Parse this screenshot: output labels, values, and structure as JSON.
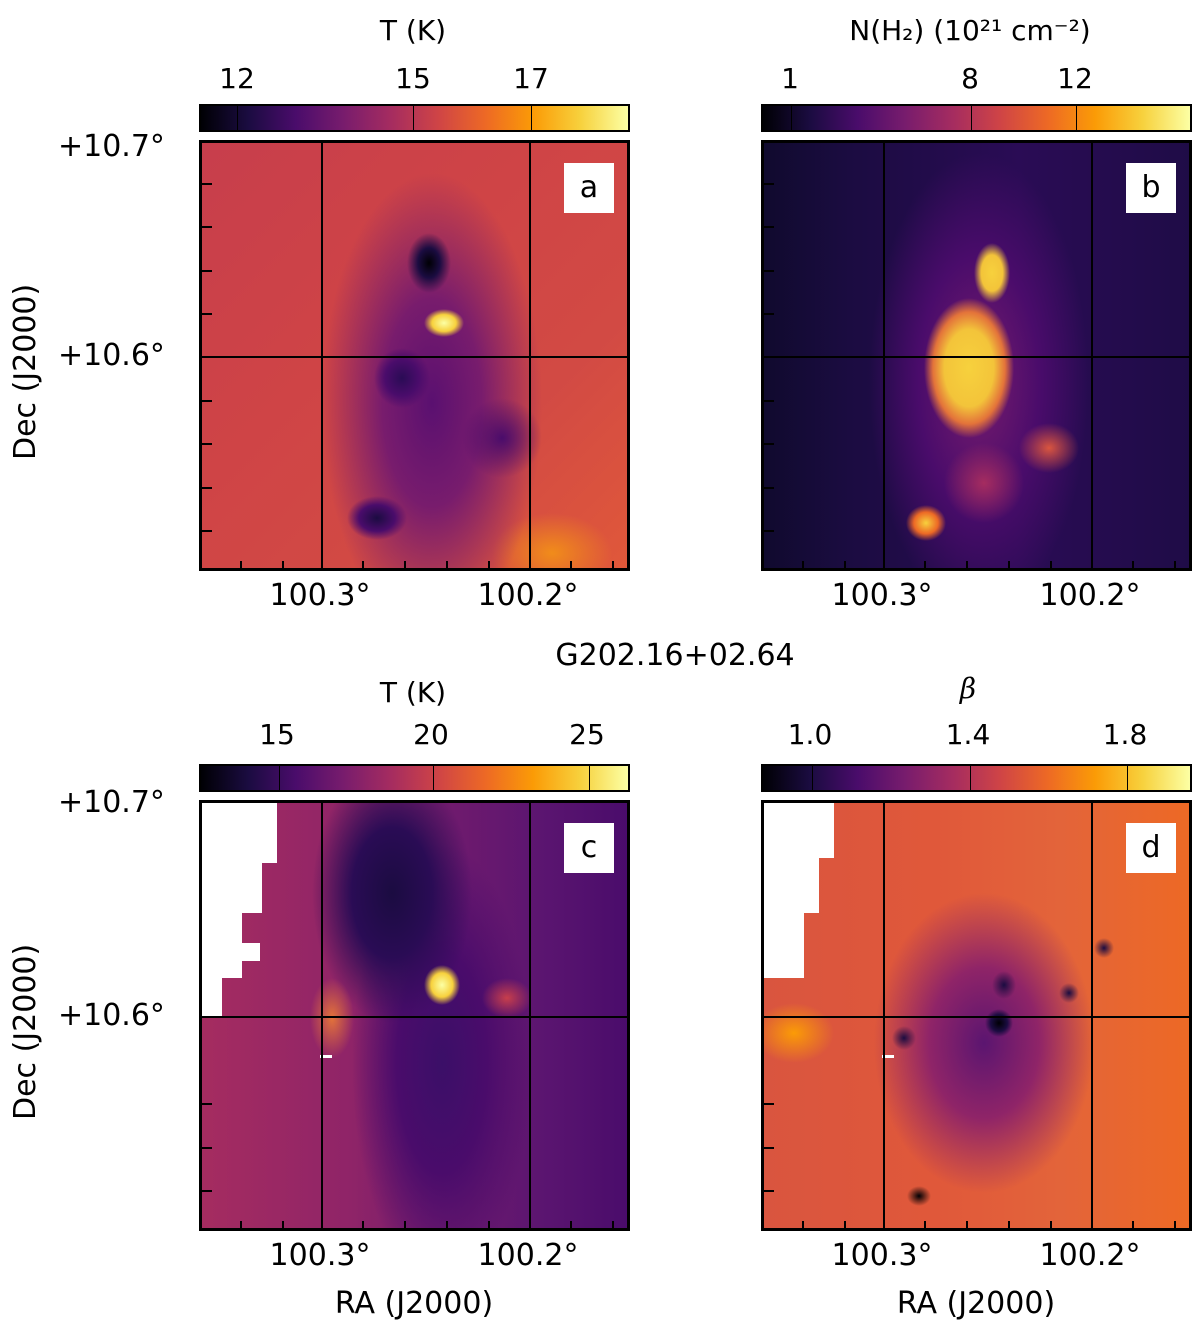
{
  "figure_title": "G202.16+02.64",
  "chart_data": [
    {
      "type": "heatmap",
      "panel": "a",
      "colorbar_title": "T (K)",
      "colorbar_ticks": [
        "12",
        "15",
        "17"
      ],
      "colormap": "inferno",
      "xticks": [
        "100.3°",
        "100.2°"
      ],
      "yticks": [
        "+10.7°",
        "+10.6°"
      ],
      "ylabel": "Dec (J2000)",
      "xlabel": ""
    },
    {
      "type": "heatmap",
      "panel": "b",
      "colorbar_title": "N(H₂) (10²¹ cm⁻²)",
      "colorbar_ticks": [
        "1",
        "8",
        "12"
      ],
      "colormap": "inferno",
      "xticks": [
        "100.3°",
        "100.2°"
      ],
      "yticks": [],
      "ylabel": "",
      "xlabel": ""
    },
    {
      "type": "heatmap",
      "panel": "c",
      "colorbar_title": "T (K)",
      "colorbar_ticks": [
        "15",
        "20",
        "25"
      ],
      "colormap": "inferno",
      "xticks": [
        "100.3°",
        "100.2°"
      ],
      "yticks": [
        "+10.7°",
        "+10.6°"
      ],
      "ylabel": "Dec (J2000)",
      "xlabel": "RA (J2000)"
    },
    {
      "type": "heatmap",
      "panel": "d",
      "colorbar_title": "β",
      "colorbar_ticks": [
        "1.0",
        "1.4",
        "1.8"
      ],
      "colormap": "inferno",
      "xticks": [
        "100.3°",
        "100.2°"
      ],
      "yticks": [],
      "ylabel": "",
      "xlabel": "RA (J2000)"
    }
  ]
}
